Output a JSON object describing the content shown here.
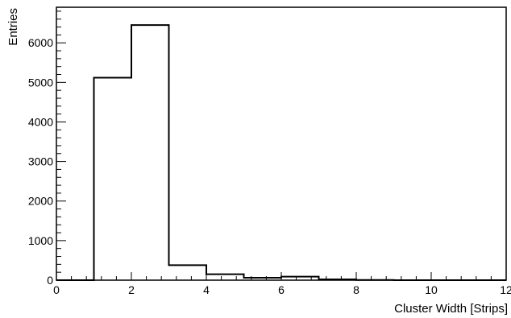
{
  "chart_data": {
    "type": "bar",
    "histogram": true,
    "title": "",
    "xlabel": "Cluster Width [Strips]",
    "ylabel": "Entries",
    "xlim": [
      0,
      12
    ],
    "ylim": [
      0,
      6900
    ],
    "x_ticks": [
      0,
      2,
      4,
      6,
      8,
      10,
      12
    ],
    "x_tick_labels": [
      "0",
      "2",
      "4",
      "6",
      "8",
      "10",
      "12"
    ],
    "y_ticks": [
      0,
      1000,
      2000,
      3000,
      4000,
      5000,
      6000
    ],
    "y_tick_labels": [
      "0",
      "1000",
      "2000",
      "3000",
      "4000",
      "5000",
      "6000"
    ],
    "bin_edges": [
      0,
      1,
      2,
      3,
      4,
      5,
      6,
      7,
      8,
      9,
      10,
      11,
      12
    ],
    "values": [
      0,
      5120,
      6450,
      380,
      150,
      60,
      90,
      20,
      5,
      0,
      0,
      0
    ],
    "grid": false,
    "legend": "none"
  }
}
